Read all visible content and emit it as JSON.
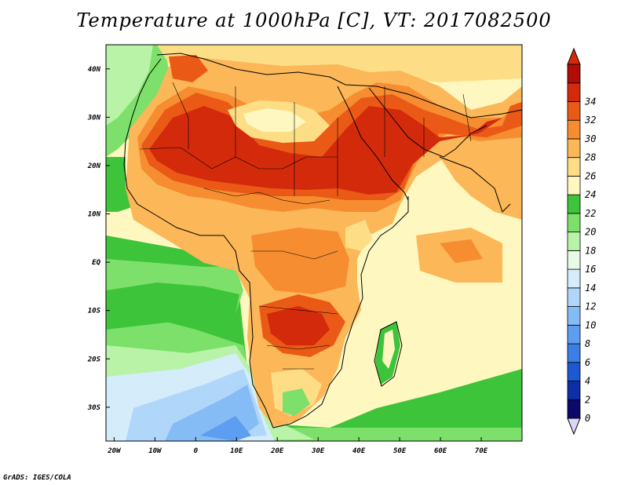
{
  "title": "Temperature at 1000hPa [C], VT: 2017082500",
  "credit": "GrADS: IGES/COLA",
  "map": {
    "lon_labels": [
      "20W",
      "10W",
      "0",
      "10E",
      "20E",
      "30E",
      "40E",
      "50E",
      "60E",
      "70E"
    ],
    "lat_labels": [
      "40N",
      "30N",
      "20N",
      "10N",
      "EQ",
      "10S",
      "20S",
      "30S"
    ],
    "lon_range": [
      -22,
      80
    ],
    "lat_range": [
      -37,
      45
    ]
  },
  "colorbar": {
    "labels": [
      "0",
      "2",
      "4",
      "6",
      "8",
      "10",
      "12",
      "14",
      "16",
      "18",
      "20",
      "22",
      "24",
      "26",
      "28",
      "30",
      "32",
      "34"
    ],
    "colors": [
      "#0b0a6b",
      "#0c2fa8",
      "#1c59d2",
      "#3a7fe6",
      "#5d9ef0",
      "#86bcf6",
      "#b0d6fa",
      "#d5ecfb",
      "#e8fbe8",
      "#b8f3a8",
      "#7de06a",
      "#3ec43a",
      "#fef8c0",
      "#fdde86",
      "#fcb759",
      "#f68d30",
      "#ea5a16",
      "#d42a0c",
      "#b30c08"
    ],
    "under_color": "#ddd6fb",
    "over_color": "#d42a0c"
  }
}
